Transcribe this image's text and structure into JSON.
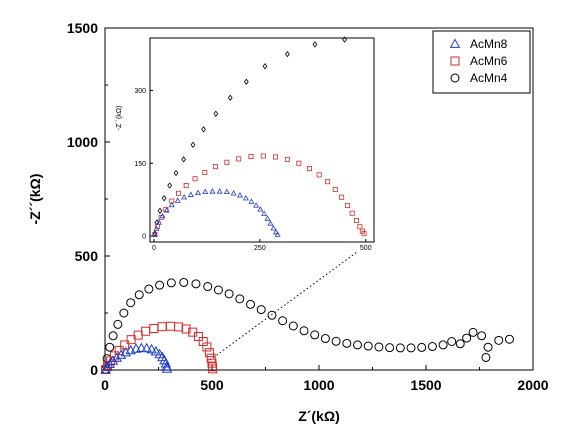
{
  "chart_data": [
    {
      "type": "scatter",
      "xlabel": "Z´(kΩ)",
      "ylabel": "-Z´´(kΩ)",
      "xlim": [
        0,
        2000
      ],
      "ylim": [
        0,
        1500
      ],
      "xticks": [
        "0",
        "500",
        "1000",
        "1500",
        "2000"
      ],
      "yticks": [
        "0",
        "500",
        "1000",
        "1500"
      ],
      "legend": "top-right",
      "series": [
        {
          "name": "AcMn8",
          "marker": "triangle",
          "color": "#1f3fc8",
          "points": [
            [
              3,
              2
            ],
            [
              10,
              13
            ],
            [
              22,
              26
            ],
            [
              37,
              40
            ],
            [
              55,
              53
            ],
            [
              75,
              66
            ],
            [
              97,
              77
            ],
            [
              120,
              86
            ],
            [
              145,
              93
            ],
            [
              170,
              96
            ],
            [
              195,
              95
            ],
            [
              218,
              90
            ],
            [
              238,
              81
            ],
            [
              255,
              69
            ],
            [
              268,
              56
            ],
            [
              278,
              42
            ],
            [
              284,
              28
            ],
            [
              288,
              14
            ],
            [
              290,
              5
            ]
          ]
        },
        {
          "name": "AcMn6",
          "marker": "square",
          "color": "#d42a2a",
          "points": [
            [
              3,
              2
            ],
            [
              12,
              20
            ],
            [
              26,
              40
            ],
            [
              44,
              62
            ],
            [
              66,
              86
            ],
            [
              92,
              110
            ],
            [
              122,
              133
            ],
            [
              155,
              153
            ],
            [
              190,
              170
            ],
            [
              228,
              182
            ],
            [
              267,
              190
            ],
            [
              306,
              192
            ],
            [
              344,
              189
            ],
            [
              379,
              180
            ],
            [
              410,
              166
            ],
            [
              437,
              147
            ],
            [
              459,
              125
            ],
            [
              476,
              101
            ],
            [
              488,
              76
            ],
            [
              496,
              52
            ],
            [
              500,
              30
            ],
            [
              502,
              14
            ],
            [
              503,
              5
            ]
          ]
        },
        {
          "name": "AcMn4",
          "marker": "circle",
          "color": "#000000",
          "points": [
            [
              3,
              3
            ],
            [
              10,
              50
            ],
            [
              22,
              100
            ],
            [
              38,
              150
            ],
            [
              60,
              200
            ],
            [
              88,
              250
            ],
            [
              120,
              295
            ],
            [
              160,
              330
            ],
            [
              205,
              355
            ],
            [
              255,
              372
            ],
            [
              310,
              382
            ],
            [
              368,
              384
            ],
            [
              425,
              378
            ],
            [
              480,
              366
            ],
            [
              530,
              351
            ],
            [
              580,
              334
            ],
            [
              630,
              312
            ],
            [
              680,
              288
            ],
            [
              730,
              265
            ],
            [
              780,
              240
            ],
            [
              830,
              216
            ],
            [
              880,
              193
            ],
            [
              930,
              172
            ],
            [
              980,
              154
            ],
            [
              1030,
              138
            ],
            [
              1080,
              126
            ],
            [
              1130,
              117
            ],
            [
              1180,
              110
            ],
            [
              1230,
              105
            ],
            [
              1280,
              101
            ],
            [
              1330,
              98
            ],
            [
              1380,
              97
            ],
            [
              1430,
              97
            ],
            [
              1480,
              99
            ],
            [
              1530,
              103
            ],
            [
              1580,
              110
            ],
            [
              1620,
              125
            ],
            [
              1660,
              115
            ],
            [
              1690,
              140
            ],
            [
              1720,
              165
            ],
            [
              1760,
              150
            ],
            [
              1790,
              100
            ],
            [
              1840,
              130
            ],
            [
              1890,
              135
            ],
            [
              1780,
              55
            ]
          ]
        }
      ]
    },
    {
      "type": "scatter",
      "xlabel": "Z´(kΩ)",
      "ylabel": "-Z´´(kΩ)",
      "xlim": [
        0,
        510
      ],
      "ylim": [
        0,
        400
      ],
      "xticks": [
        "0",
        "250",
        "500"
      ],
      "yticks": [
        "0",
        "150",
        "300"
      ],
      "series": [
        {
          "name": "AcMn8",
          "points": [
            [
              2,
              3
            ],
            [
              6,
              15
            ],
            [
              12,
              28
            ],
            [
              20,
              41
            ],
            [
              30,
              53
            ],
            [
              42,
              64
            ],
            [
              56,
              73
            ],
            [
              71,
              80
            ],
            [
              87,
              85
            ],
            [
              104,
              89
            ],
            [
              121,
              91
            ],
            [
              138,
              92
            ],
            [
              155,
              92
            ],
            [
              172,
              91
            ],
            [
              188,
              88
            ],
            [
              203,
              84
            ],
            [
              217,
              78
            ],
            [
              230,
              71
            ],
            [
              241,
              63
            ],
            [
              251,
              55
            ],
            [
              260,
              46
            ],
            [
              268,
              36
            ],
            [
              275,
              26
            ],
            [
              282,
              16
            ],
            [
              288,
              8
            ],
            [
              292,
              3
            ]
          ]
        },
        {
          "name": "AcMn6",
          "points": [
            [
              2,
              3
            ],
            [
              8,
              20
            ],
            [
              17,
              38
            ],
            [
              28,
              55
            ],
            [
              42,
              72
            ],
            [
              58,
              88
            ],
            [
              76,
              104
            ],
            [
              97,
              118
            ],
            [
              120,
              131
            ],
            [
              145,
              143
            ],
            [
              172,
              152
            ],
            [
              200,
              159
            ],
            [
              229,
              164
            ],
            [
              258,
              165
            ],
            [
              287,
              163
            ],
            [
              315,
              158
            ],
            [
              342,
              150
            ],
            [
              367,
              139
            ],
            [
              390,
              126
            ],
            [
              410,
              112
            ],
            [
              428,
              96
            ],
            [
              443,
              80
            ],
            [
              457,
              63
            ],
            [
              468,
              47
            ],
            [
              478,
              32
            ],
            [
              486,
              19
            ],
            [
              492,
              10
            ],
            [
              496,
              5
            ]
          ]
        },
        {
          "name": "AcMn4",
          "points": [
            [
              2,
              5
            ],
            [
              7,
              28
            ],
            [
              14,
              52
            ],
            [
              24,
              78
            ],
            [
              37,
              104
            ],
            [
              52,
              130
            ],
            [
              70,
              158
            ],
            [
              92,
              188
            ],
            [
              117,
              220
            ],
            [
              146,
              252
            ],
            [
              180,
              285
            ],
            [
              218,
              318
            ],
            [
              262,
              350
            ],
            [
              315,
              375
            ],
            [
              380,
              395
            ],
            [
              450,
              405
            ]
          ]
        }
      ]
    }
  ]
}
